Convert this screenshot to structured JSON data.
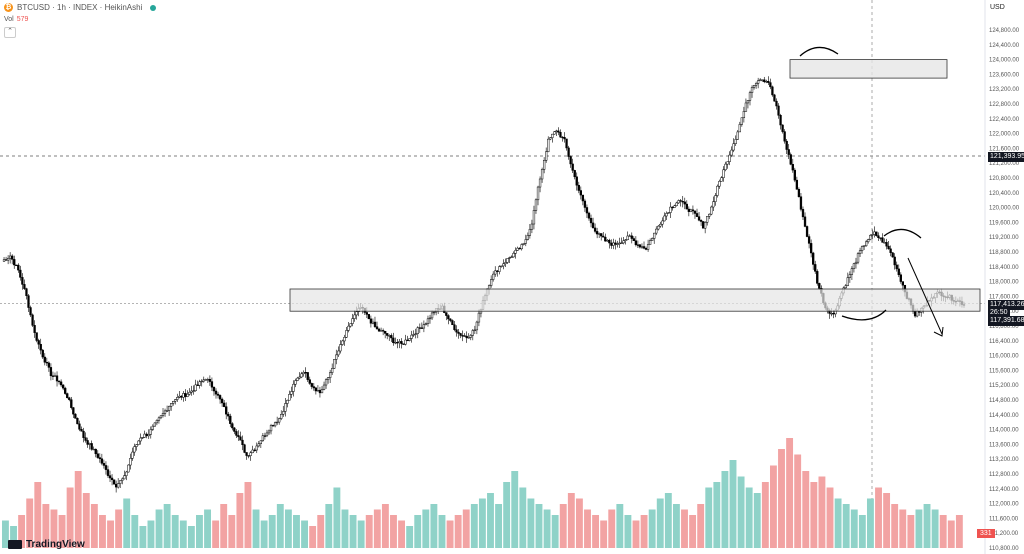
{
  "header": {
    "symbol": "BTCUSD · 1h · INDEX · HeikinAshi",
    "coin_glyph": "₿",
    "volume_label": "Vol",
    "volume_value": "579",
    "collapse_glyph": "⌃"
  },
  "currency_button": "USD",
  "branding": "TradingView",
  "price_labels": {
    "crosshair": "121,393.95",
    "last_price": "117,413.26",
    "countdown": "26:50",
    "prev_close": "117,391.68",
    "volume_axis": "331"
  },
  "colors": {
    "up": "#000000",
    "down": "#000000",
    "volume_up": "#8fd2c8",
    "volume_down": "#f2a3a3",
    "zone_fill": "#e6e6e6",
    "zone_stroke": "#333333",
    "axis_text": "#555555"
  },
  "chart_data": {
    "type": "candlestick",
    "style": "HeikinAshi",
    "ylim": [
      110800,
      124800
    ],
    "y_ticks": [
      124800,
      124400,
      124000,
      123600,
      123200,
      122800,
      122400,
      122000,
      121600,
      121200,
      120800,
      120400,
      120000,
      119600,
      119200,
      118800,
      118400,
      118000,
      117600,
      117200,
      116800,
      116400,
      116000,
      115600,
      115200,
      114800,
      114400,
      114000,
      113600,
      113200,
      112800,
      112400,
      112000,
      111600,
      111200,
      110800
    ],
    "tick_labels": [
      "124,800.00",
      "124,400.00",
      "124,000.00",
      "123,600.00",
      "123,200.00",
      "122,800.00",
      "122,400.00",
      "122,000.00",
      "121,600.00",
      "121,200.00",
      "120,800.00",
      "120,400.00",
      "120,000.00",
      "119,600.00",
      "119,200.00",
      "118,800.00",
      "118,400.00",
      "118,000.00",
      "117,600.00",
      "117,200.00",
      "116,800.00",
      "116,400.00",
      "116,000.00",
      "115,600.00",
      "115,200.00",
      "114,800.00",
      "114,400.00",
      "114,000.00",
      "113,600.00",
      "113,200.00",
      "112,800.00",
      "112,400.00",
      "112,000.00",
      "111,600.00",
      "111,200.00",
      "110,800.00"
    ],
    "price_path": [
      118550,
      118700,
      118300,
      117600,
      116600,
      116000,
      115500,
      115300,
      114900,
      114300,
      113800,
      113500,
      113200,
      112800,
      112500,
      112700,
      113400,
      113800,
      113900,
      114200,
      114500,
      114800,
      114900,
      115000,
      115200,
      115400,
      115100,
      114700,
      114200,
      113800,
      113300,
      113500,
      113800,
      114100,
      114300,
      114800,
      115300,
      115600,
      115200,
      115000,
      115400,
      116000,
      116500,
      117000,
      117300,
      117000,
      116700,
      116600,
      116400,
      116300,
      116500,
      116700,
      116900,
      117200,
      117300,
      116900,
      116600,
      116500,
      116700,
      117500,
      118100,
      118400,
      118600,
      118800,
      119000,
      119600,
      120800,
      121800,
      122100,
      121800,
      121000,
      120300,
      119700,
      119300,
      119100,
      119000,
      119100,
      119200,
      119000,
      118900,
      119300,
      119700,
      120000,
      120200,
      120000,
      119800,
      119500,
      120000,
      120700,
      121300,
      121900,
      122600,
      123300,
      123500,
      123400,
      122700,
      121800,
      121000,
      120000,
      119000,
      118000,
      117300,
      117100,
      117700,
      118200,
      118700,
      119100,
      119300,
      119100,
      118800,
      118200,
      117600,
      117100,
      117300,
      117600,
      117700,
      117600,
      117500,
      117400
    ],
    "volume_values": [
      25,
      20,
      30,
      45,
      60,
      40,
      35,
      30,
      55,
      70,
      50,
      40,
      30,
      25,
      35,
      45,
      30,
      20,
      25,
      35,
      40,
      30,
      25,
      20,
      30,
      35,
      25,
      40,
      30,
      50,
      60,
      35,
      25,
      30,
      40,
      35,
      30,
      25,
      20,
      30,
      40,
      55,
      35,
      30,
      25,
      30,
      35,
      40,
      30,
      25,
      20,
      30,
      35,
      40,
      30,
      25,
      30,
      35,
      40,
      45,
      50,
      40,
      60,
      70,
      55,
      45,
      40,
      35,
      30,
      40,
      50,
      45,
      35,
      30,
      25,
      35,
      40,
      30,
      25,
      30,
      35,
      45,
      50,
      40,
      35,
      30,
      40,
      55,
      60,
      70,
      80,
      65,
      55,
      50,
      60,
      75,
      90,
      100,
      85,
      70,
      60,
      65,
      55,
      45,
      40,
      35,
      30,
      45,
      55,
      50,
      40,
      35,
      30,
      35,
      40,
      35,
      30,
      25,
      30
    ],
    "zones": [
      {
        "y_top": 124000,
        "y_bottom": 123500
      },
      {
        "y_top": 117800,
        "y_bottom": 117200
      }
    ]
  }
}
